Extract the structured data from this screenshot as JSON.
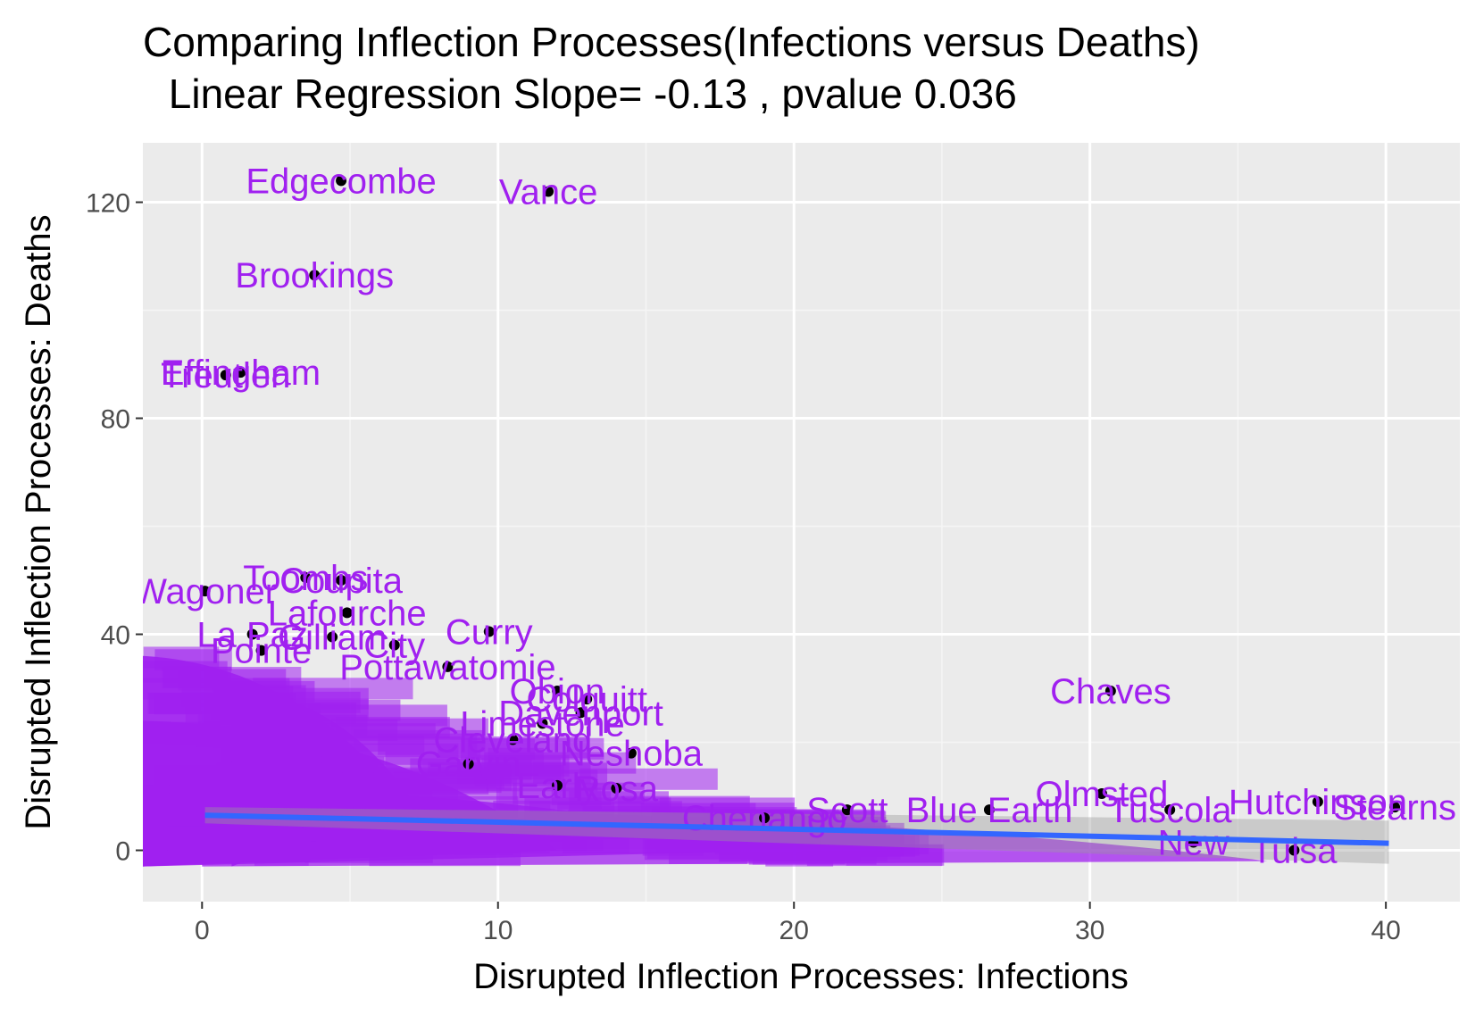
{
  "colors": {
    "panel": "#ebebeb",
    "grid_major": "#ffffff",
    "grid_minor": "#f5f5f5",
    "label": "#a020f0",
    "point": "#000000",
    "line": "#3366ff",
    "ribbon": "#999999"
  },
  "chart_data": {
    "type": "scatter",
    "title": "Comparing Inflection Processes(Infections versus Deaths)",
    "subtitle": " Linear Regression Slope= -0.13 , pvalue 0.036",
    "xlabel": "Disrupted Inflection Processes: Infections",
    "ylabel": "Disrupted Inflection Processes: Deaths",
    "xlim": [
      -2,
      42.5
    ],
    "ylim": [
      -9.5,
      131
    ],
    "xticks": [
      0,
      10,
      20,
      30,
      40
    ],
    "yticks": [
      0,
      40,
      80,
      120
    ],
    "grid": true,
    "regression": {
      "slope": -0.13,
      "x_start": 0.1,
      "x_end": 40.1,
      "y_start": 6.5,
      "y_end": 1.3,
      "ci_start": [
        5.0,
        8.0
      ],
      "ci_end": [
        -2.5,
        5.5
      ]
    },
    "points": [
      {
        "x": 4.7,
        "y": 124,
        "label": "Edgecombe"
      },
      {
        "x": 11.7,
        "y": 122,
        "label": "Vance"
      },
      {
        "x": 3.8,
        "y": 106.5,
        "label": "Brookings"
      },
      {
        "x": 1.3,
        "y": 88.5,
        "label": "Effingham"
      },
      {
        "x": 0.8,
        "y": 88,
        "label": "Treutlen"
      },
      {
        "x": 0.1,
        "y": 48,
        "label": "Wagoner"
      },
      {
        "x": 3.5,
        "y": 50.5,
        "label": "Toombs"
      },
      {
        "x": 4.7,
        "y": 50,
        "label": "Coupita"
      },
      {
        "x": 4.9,
        "y": 44,
        "label": "Lafourche"
      },
      {
        "x": 9.7,
        "y": 40.5,
        "label": "Curry"
      },
      {
        "x": 1.7,
        "y": 40,
        "label": "La Paz"
      },
      {
        "x": 4.4,
        "y": 39.5,
        "label": "Gilliam"
      },
      {
        "x": 2.0,
        "y": 37,
        "label": "Pointe"
      },
      {
        "x": 6.5,
        "y": 38,
        "label": "City"
      },
      {
        "x": 8.3,
        "y": 34,
        "label": "Pottawatomie"
      },
      {
        "x": 12.0,
        "y": 29.5,
        "label": "Obion"
      },
      {
        "x": 13.0,
        "y": 28,
        "label": "Colquitt"
      },
      {
        "x": 12.8,
        "y": 25.5,
        "label": "Davenport"
      },
      {
        "x": 11.5,
        "y": 23.5,
        "label": "Limestone"
      },
      {
        "x": 10.5,
        "y": 20.5,
        "label": "Cleveland"
      },
      {
        "x": 14.5,
        "y": 18,
        "label": "Neshoba"
      },
      {
        "x": 9.0,
        "y": 16,
        "label": "Garvin"
      },
      {
        "x": 12.0,
        "y": 12,
        "label": "Early"
      },
      {
        "x": 14.0,
        "y": 11.5,
        "label": "Rosa"
      },
      {
        "x": 19.0,
        "y": 6,
        "label": "Chenango"
      },
      {
        "x": 21.8,
        "y": 7.5,
        "label": "Scott"
      },
      {
        "x": 26.6,
        "y": 7.5,
        "label": "Blue Earth"
      },
      {
        "x": 30.7,
        "y": 29.5,
        "label": "Chaves"
      },
      {
        "x": 30.4,
        "y": 10.5,
        "label": "Olmsted"
      },
      {
        "x": 32.7,
        "y": 7.5,
        "label": "Tuscola"
      },
      {
        "x": 33.5,
        "y": 1.5,
        "label": "New"
      },
      {
        "x": 37.7,
        "y": 9,
        "label": "Hutchinson"
      },
      {
        "x": 40.3,
        "y": 8,
        "label": "Stearns"
      },
      {
        "x": 36.9,
        "y": 0,
        "label": "Tulsa"
      }
    ]
  }
}
